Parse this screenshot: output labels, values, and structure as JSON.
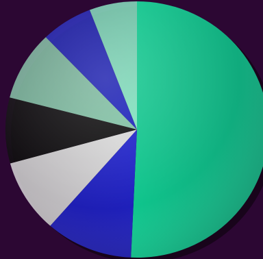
{
  "colors": {
    "background": "#2c0733"
  },
  "chart_data": {
    "type": "pie",
    "title": "",
    "slices": [
      {
        "value": 52.0,
        "color": "#0fc68d"
      },
      {
        "value": 11.0,
        "color": "#1f22c8"
      },
      {
        "value": 9.5,
        "color": "#d6d6d6"
      },
      {
        "value": 8.5,
        "color": "#0d0d0d"
      },
      {
        "value": 9.0,
        "color": "#7fbfa2"
      },
      {
        "value": 6.5,
        "color": "#1a1fb8"
      },
      {
        "value": 6.0,
        "color": "#7fe0bd"
      }
    ],
    "start_angle_deg": 0,
    "direction": "clockwise",
    "legend": "none",
    "style": "3d-shaded"
  }
}
